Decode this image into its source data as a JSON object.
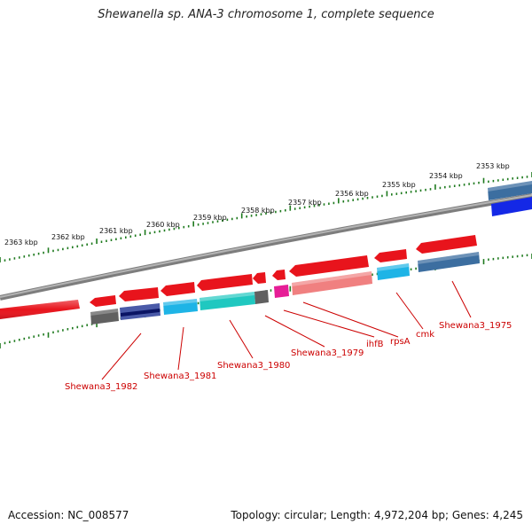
{
  "title": "Shewanella sp. ANA-3 chromosome 1, complete sequence",
  "footer": {
    "accession": "Accession: NC_008577",
    "topology": "Topology: circular; Length: 4,972,204 bp; Genes: 4,245"
  },
  "ticks_top": [
    "2363 kbp",
    "2362 kbp",
    "2361 kbp",
    "2360 kbp",
    "2359 kbp",
    "2358 kbp",
    "2357 kbp",
    "2356 kbp",
    "2355 kbp",
    "2354 kbp",
    "2353 kbp"
  ],
  "gene_labels": [
    "Shewana3_1982",
    "Shewana3_1981",
    "Shewana3_1980",
    "Shewana3_1979",
    "ihfB",
    "rpsA",
    "cmk",
    "Shewana3_1975"
  ],
  "colors": {
    "gene_forward": "#e8141c",
    "gene_forward_light": "#f08080",
    "cyan": "#1eb4e6",
    "teal": "#20c8c0",
    "gray": "#606060",
    "navy": "#283c8c",
    "magenta": "#e61e96",
    "steel_blue": "#3c6ea0",
    "blue": "#1428e6",
    "backbone": "#8a8a8a",
    "tick_green": "#1e7a1e",
    "label_red": "#cc0000"
  }
}
